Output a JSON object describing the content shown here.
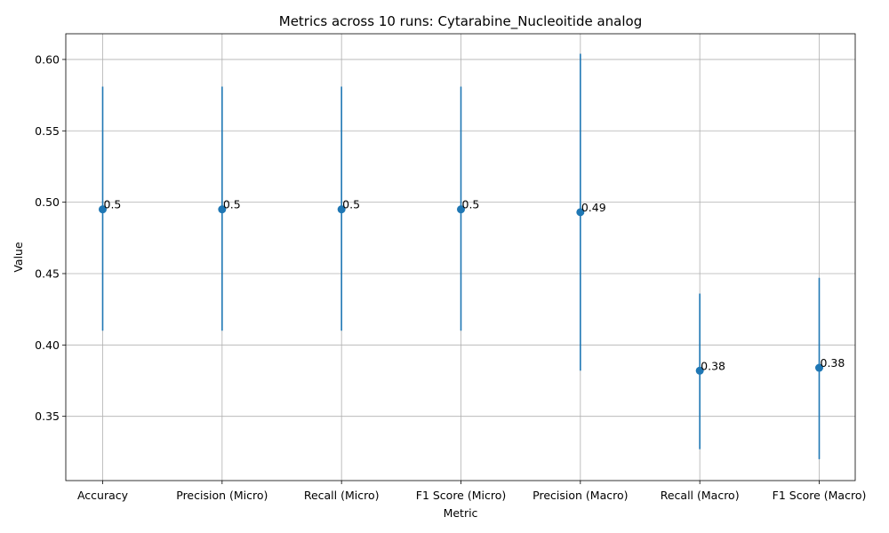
{
  "chart_data": {
    "type": "scatter",
    "title": "Metrics across 10 runs: Cytarabine_Nucleoitide analog",
    "xlabel": "Metric",
    "ylabel": "Value",
    "categories": [
      "Accuracy",
      "Precision (Micro)",
      "Recall (Micro)",
      "F1 Score (Micro)",
      "Precision (Macro)",
      "Recall (Macro)",
      "F1 Score (Macro)"
    ],
    "values": [
      0.495,
      0.495,
      0.495,
      0.495,
      0.493,
      0.382,
      0.384
    ],
    "error_low": [
      0.41,
      0.41,
      0.41,
      0.41,
      0.382,
      0.327,
      0.32
    ],
    "error_high": [
      0.581,
      0.581,
      0.581,
      0.581,
      0.604,
      0.436,
      0.447
    ],
    "data_labels": [
      "0.5",
      "0.5",
      "0.5",
      "0.5",
      "0.49",
      "0.38",
      "0.38"
    ],
    "ylim": [
      0.305,
      0.618
    ],
    "yticks": [
      0.35,
      0.4,
      0.45,
      0.5,
      0.55,
      0.6
    ],
    "ytick_labels": [
      "0.35",
      "0.40",
      "0.45",
      "0.50",
      "0.55",
      "0.60"
    ],
    "grid": true,
    "color": "#1f77b4"
  }
}
